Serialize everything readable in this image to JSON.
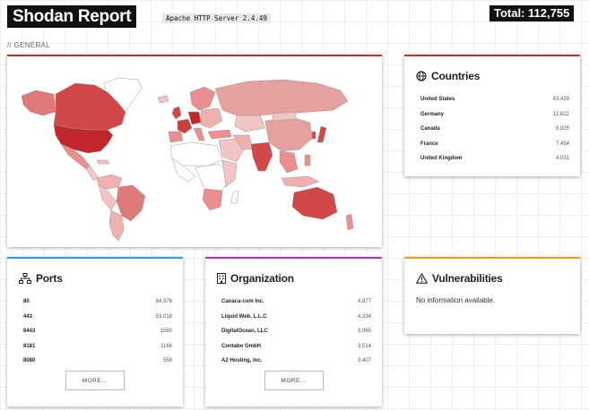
{
  "header": {
    "title": "Shodan Report",
    "query": "Apache HTTP Server 2.4.49",
    "total": "Total: 112,755"
  },
  "section_label": "// GENERAL",
  "countries": {
    "title": "Countries",
    "items": [
      {
        "name": "United States",
        "count": "43,429"
      },
      {
        "name": "Germany",
        "count": "12,622"
      },
      {
        "name": "Canada",
        "count": "9,925"
      },
      {
        "name": "France",
        "count": "7,454"
      },
      {
        "name": "United Kingdom",
        "count": "4,031"
      }
    ]
  },
  "ports": {
    "title": "Ports",
    "items": [
      {
        "name": "80",
        "count": "64,978"
      },
      {
        "name": "443",
        "count": "53,018"
      },
      {
        "name": "8443",
        "count": "1560"
      },
      {
        "name": "8181",
        "count": "1166"
      },
      {
        "name": "8080",
        "count": "558"
      }
    ],
    "more_label": "MORE..."
  },
  "organization": {
    "title": "Organization",
    "items": [
      {
        "name": "Canaca-com Inc.",
        "count": "4,877"
      },
      {
        "name": "Liquid Web, L.L.C",
        "count": "4,334"
      },
      {
        "name": "DigitalOcean, LLC",
        "count": "3,965"
      },
      {
        "name": "Contabo GmbH",
        "count": "3,514"
      },
      {
        "name": "A2 Hosting, Inc.",
        "count": "3,407"
      }
    ],
    "more_label": "MORE..."
  },
  "vulnerabilities": {
    "title": "Vulnerabilities",
    "message": "No information available."
  },
  "colors": {
    "accent_countries": "#b03a2e",
    "accent_ports": "#3a9ad9",
    "accent_org": "#a040a8",
    "accent_vulns": "#e0a020",
    "map_high": "#c0282e",
    "map_mid": "#e07a7a",
    "map_low": "#f3c4c4",
    "map_none": "#ffffff"
  },
  "icons": {
    "countries": "globe-icon",
    "ports": "network-icon",
    "organization": "building-icon",
    "vulnerabilities": "warning-icon"
  }
}
